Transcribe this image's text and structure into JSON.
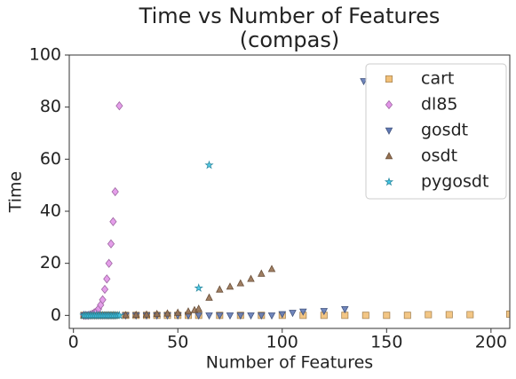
{
  "chart_data": {
    "type": "scatter",
    "title": "Time vs Number of Features",
    "subtitle": "(compas)",
    "x_label": "Number of Features",
    "y_label": "Time",
    "xlim": [
      -2,
      209
    ],
    "ylim": [
      -5,
      100
    ],
    "xticks": [
      0,
      50,
      100,
      150,
      200
    ],
    "yticks": [
      0,
      20,
      40,
      60,
      80,
      100
    ],
    "grid": false,
    "legend": "upper right",
    "series": [
      {
        "name": "cart",
        "color": "#f2c078",
        "marker": "square",
        "x": [
          5,
          6,
          7,
          8,
          9,
          10,
          11,
          12,
          13,
          14,
          15,
          16,
          17,
          18,
          19,
          20,
          25,
          30,
          35,
          40,
          45,
          50,
          55,
          60,
          70,
          80,
          90,
          100,
          110,
          120,
          130,
          140,
          150,
          160,
          170,
          180,
          190,
          209
        ],
        "values": [
          0,
          0,
          0,
          0,
          0,
          0,
          0,
          0,
          0,
          0,
          0,
          0,
          0,
          0,
          0,
          0,
          0,
          0,
          0,
          0,
          0,
          0,
          0,
          0,
          0,
          0,
          0,
          0,
          0,
          0,
          0,
          0,
          0,
          0,
          0.3,
          0.3,
          0.3,
          0.5
        ]
      },
      {
        "name": "dl85",
        "color": "#e294e8",
        "marker": "diamond",
        "x": [
          5,
          6,
          7,
          8,
          9,
          10,
          11,
          12,
          13,
          14,
          15,
          16,
          17,
          18,
          19,
          20,
          22
        ],
        "values": [
          0,
          0,
          0,
          0.2,
          0.5,
          1,
          1.5,
          2.5,
          4,
          6,
          10,
          14,
          20,
          27.5,
          36,
          47.5,
          80.5
        ]
      },
      {
        "name": "gosdt",
        "color": "#6079b5",
        "marker": "triangle-down",
        "x": [
          5,
          6,
          7,
          8,
          9,
          10,
          11,
          12,
          13,
          14,
          15,
          16,
          17,
          18,
          19,
          20,
          25,
          30,
          35,
          40,
          45,
          50,
          55,
          60,
          65,
          70,
          75,
          80,
          85,
          90,
          95,
          100,
          105,
          110,
          120,
          130,
          139
        ],
        "values": [
          0,
          0,
          0,
          0,
          0,
          0,
          0,
          0,
          0,
          0,
          0,
          0,
          0,
          0,
          0,
          0,
          0,
          0,
          0,
          0,
          0,
          0,
          0,
          0,
          0,
          0,
          0,
          0,
          0,
          0,
          0,
          0.5,
          1,
          1.5,
          1.7,
          2.4,
          90
        ]
      },
      {
        "name": "osdt",
        "color": "#967152",
        "marker": "triangle-up",
        "x": [
          5,
          6,
          7,
          8,
          9,
          10,
          11,
          12,
          13,
          14,
          15,
          16,
          17,
          18,
          19,
          20,
          25,
          30,
          35,
          40,
          45,
          50,
          55,
          58,
          60,
          65,
          70,
          75,
          80,
          85,
          90,
          95
        ],
        "values": [
          0,
          0,
          0,
          0,
          0,
          0,
          0,
          0,
          0,
          0,
          0,
          0,
          0,
          0,
          0,
          0,
          0.1,
          0.2,
          0.3,
          0.5,
          0.7,
          1,
          1.5,
          2,
          2.5,
          6.8,
          9.9,
          11,
          12.3,
          14,
          16,
          17.8
        ]
      },
      {
        "name": "pygosdt",
        "color": "#40c8e8",
        "marker": "star",
        "x": [
          5,
          6,
          7,
          8,
          9,
          10,
          11,
          12,
          13,
          14,
          15,
          16,
          17,
          18,
          19,
          20,
          21,
          22,
          60,
          65
        ],
        "values": [
          0,
          0,
          0,
          0,
          0,
          0,
          0,
          0,
          0,
          0,
          0,
          0,
          0,
          0,
          0,
          0,
          0,
          0,
          10.5,
          57.7
        ]
      }
    ]
  }
}
